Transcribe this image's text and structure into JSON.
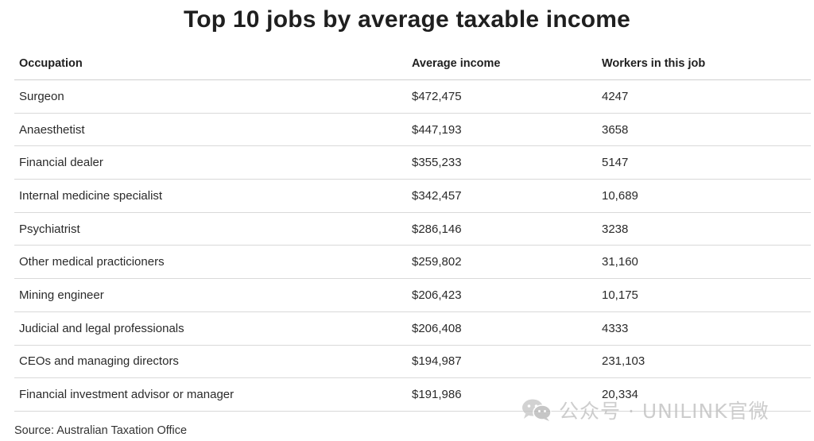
{
  "chart_data": {
    "type": "table",
    "title": "Top 10 jobs by average taxable income",
    "columns": [
      "Occupation",
      "Average income",
      "Workers in this job"
    ],
    "rows": [
      [
        "Surgeon",
        "$472,475",
        "4247"
      ],
      [
        "Anaesthetist",
        "$447,193",
        "3658"
      ],
      [
        "Financial dealer",
        "$355,233",
        "5147"
      ],
      [
        "Internal medicine specialist",
        "$342,457",
        "10,689"
      ],
      [
        "Psychiatrist",
        "$286,146",
        "3238"
      ],
      [
        "Other medical practicioners",
        "$259,802",
        "31,160"
      ],
      [
        "Mining engineer",
        "$206,423",
        "10,175"
      ],
      [
        "Judicial and legal professionals",
        "$206,408",
        "4333"
      ],
      [
        "CEOs and managing directors",
        "$194,987",
        "231,103"
      ],
      [
        "Financial investment advisor or manager",
        "$191,986",
        "20,334"
      ]
    ],
    "source": "Source: Australian Taxation Office"
  },
  "watermark": {
    "text": "公众号 · UNILINK官微",
    "icon": "wechat-icon"
  }
}
